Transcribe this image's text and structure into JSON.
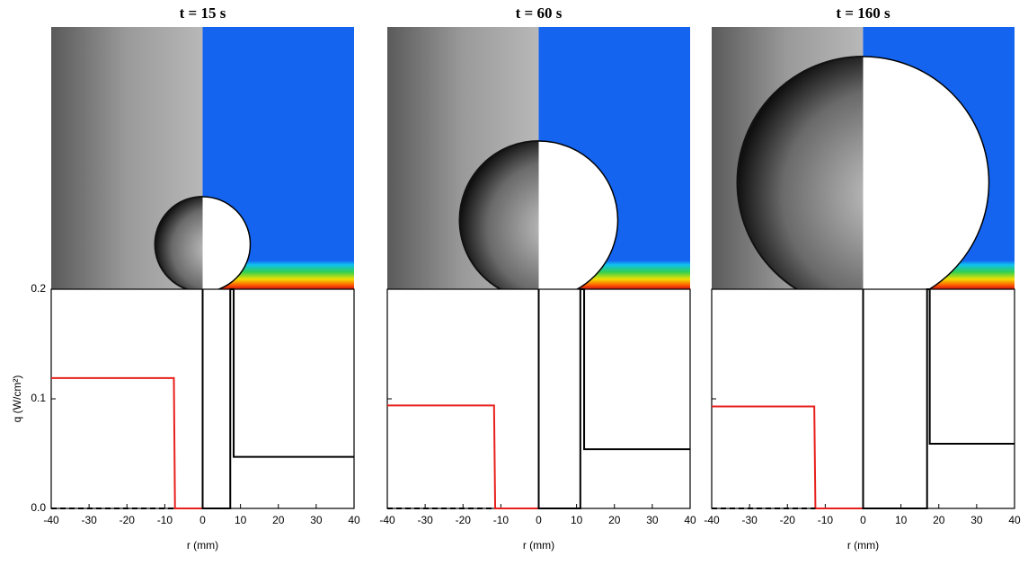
{
  "chart_data": [
    {
      "type": "line",
      "title": "t = 15 s",
      "xlabel": "r (mm)",
      "ylabel": "q (W/cm²)",
      "xlim": [
        -40,
        40
      ],
      "ylim": [
        0,
        0.2
      ],
      "xticks": [
        -40,
        -30,
        -20,
        -10,
        0,
        10,
        20,
        30,
        40
      ],
      "yticks": [
        {
          "value": 0,
          "label": "0.0"
        },
        0.1,
        0.2
      ],
      "series": [
        {
          "color": "#e8201c",
          "style": "solid",
          "x": [
            -40,
            -7.6,
            -7.3,
            0
          ],
          "values": [
            0.119,
            0.119,
            0,
            0
          ]
        },
        {
          "color": "#000000",
          "style": "solid",
          "x": [
            0,
            0,
            7.3,
            7.3,
            8.2,
            8.2,
            40
          ],
          "values": [
            0.2,
            0,
            0,
            0.2,
            0.2,
            0.047,
            0.047
          ]
        },
        {
          "color": "#000000",
          "style": "dashed",
          "x": [
            -40,
            -7.3
          ],
          "values": [
            0,
            0
          ]
        }
      ]
    },
    {
      "type": "line",
      "title": "t = 60 s",
      "xlabel": "r (mm)",
      "xlim": [
        -40,
        40
      ],
      "ylim": [
        0,
        0.2
      ],
      "xticks": [
        -40,
        -30,
        -20,
        -10,
        0,
        10,
        20,
        30,
        40
      ],
      "yticks": [
        0,
        0.1,
        0.2
      ],
      "series": [
        {
          "color": "#e8201c",
          "style": "solid",
          "x": [
            -40,
            -11.8,
            -11.5,
            0
          ],
          "values": [
            0.094,
            0.094,
            0,
            0
          ]
        },
        {
          "color": "#000000",
          "style": "solid",
          "x": [
            0,
            0,
            11,
            11,
            12,
            12,
            40
          ],
          "values": [
            0.2,
            0,
            0,
            0.2,
            0.2,
            0.054,
            0.054
          ]
        },
        {
          "color": "#000000",
          "style": "dashed",
          "x": [
            -40,
            -11.5
          ],
          "values": [
            0,
            0
          ]
        }
      ]
    },
    {
      "type": "line",
      "title": "t = 160 s",
      "xlabel": "r (mm)",
      "xlim": [
        -40,
        40
      ],
      "ylim": [
        0,
        0.2
      ],
      "xticks": [
        -40,
        -30,
        -20,
        -10,
        0,
        10,
        20,
        30,
        40
      ],
      "yticks": [
        0,
        0.1,
        0.2
      ],
      "series": [
        {
          "color": "#e8201c",
          "style": "solid",
          "x": [
            -40,
            -12.9,
            -12.6,
            0
          ],
          "values": [
            0.093,
            0.093,
            0,
            0
          ]
        },
        {
          "color": "#000000",
          "style": "solid",
          "x": [
            0,
            0,
            16.9,
            16.9,
            17.6,
            17.6,
            40
          ],
          "values": [
            0.2,
            0,
            0,
            0.2,
            0.2,
            0.059,
            0.059
          ]
        },
        {
          "color": "#000000",
          "style": "dashed",
          "x": [
            -40,
            -12.6
          ],
          "values": [
            0,
            0
          ]
        }
      ]
    }
  ]
}
